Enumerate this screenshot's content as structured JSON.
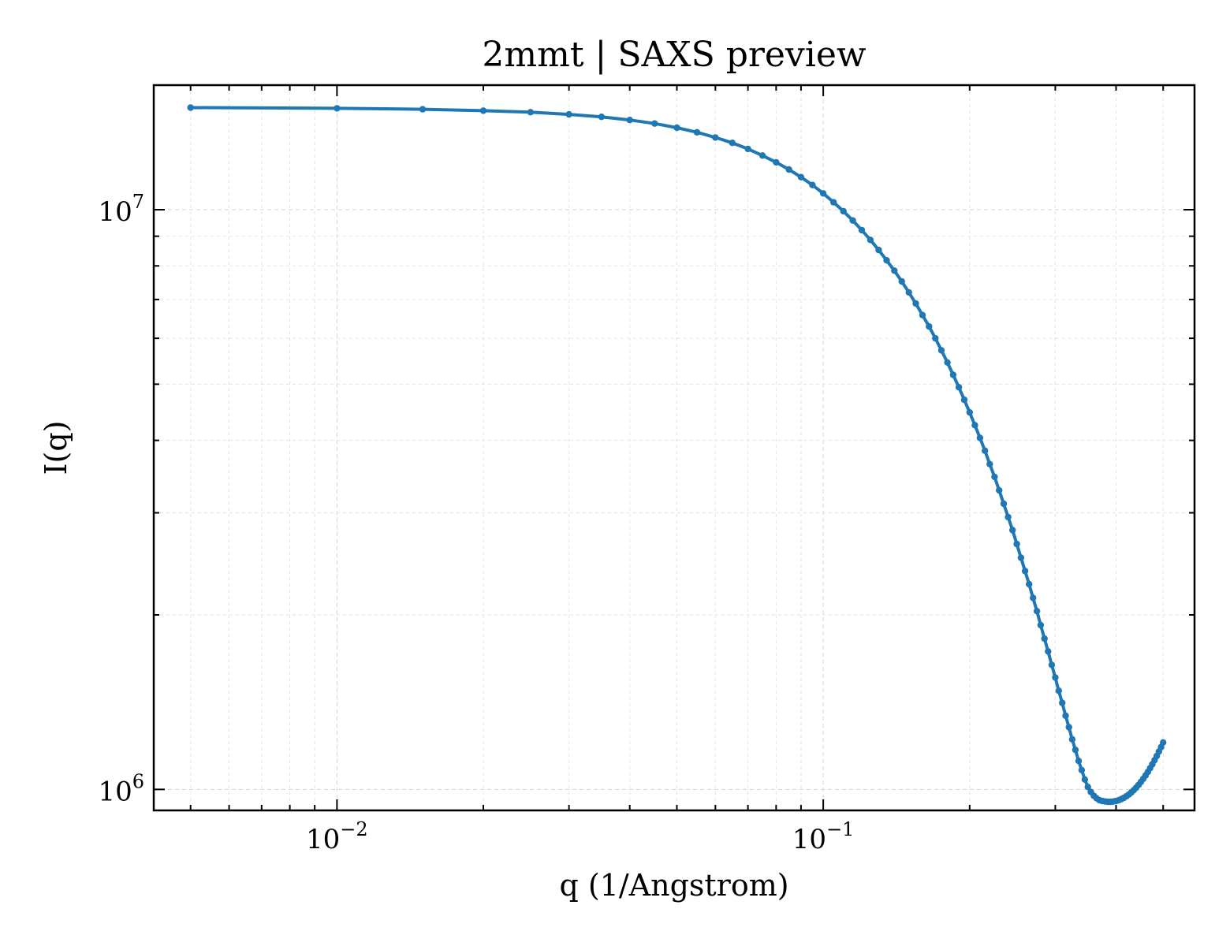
{
  "chart_data": {
    "type": "line",
    "title": "2mmt | SAXS preview",
    "xlabel": "q (1/Angstrom)",
    "ylabel": "I(q)",
    "x_scale": "log",
    "y_scale": "log",
    "xlim": [
      0.0042,
      0.58
    ],
    "ylim": [
      920000,
      16400000
    ],
    "x_ticks": [
      {
        "value": 0.01,
        "base": "10",
        "exp": "−2"
      },
      {
        "value": 0.1,
        "base": "10",
        "exp": "−1"
      }
    ],
    "y_ticks": [
      {
        "value": 1000000,
        "base": "10",
        "exp": "6"
      },
      {
        "value": 10000000,
        "base": "10",
        "exp": "7"
      }
    ],
    "grid": true,
    "line_color": "#1f77b4",
    "series": [
      {
        "x": [
          0.005,
          0.01,
          0.015,
          0.02,
          0.025,
          0.03,
          0.035,
          0.04,
          0.045,
          0.05,
          0.055,
          0.06,
          0.065,
          0.07,
          0.075,
          0.08,
          0.085,
          0.09,
          0.095,
          0.1,
          0.105,
          0.11,
          0.115,
          0.12,
          0.125,
          0.13,
          0.135,
          0.14,
          0.145,
          0.15,
          0.155,
          0.16,
          0.165,
          0.17,
          0.175,
          0.18,
          0.185,
          0.19,
          0.195,
          0.2,
          0.205,
          0.21,
          0.215,
          0.22,
          0.225,
          0.23,
          0.235,
          0.24,
          0.245,
          0.25,
          0.255,
          0.26,
          0.265,
          0.27,
          0.275,
          0.28,
          0.285,
          0.29,
          0.295,
          0.3,
          0.305,
          0.31,
          0.315,
          0.32,
          0.325,
          0.33,
          0.335,
          0.34,
          0.345,
          0.35,
          0.355,
          0.36,
          0.365,
          0.37,
          0.375,
          0.38,
          0.385,
          0.39,
          0.395,
          0.4,
          0.405,
          0.41,
          0.415,
          0.42,
          0.425,
          0.43,
          0.435,
          0.44,
          0.445,
          0.45,
          0.455,
          0.46,
          0.465,
          0.47,
          0.475,
          0.48,
          0.485,
          0.49,
          0.495,
          0.5
        ],
        "y": [
          15000000,
          14960000,
          14900000,
          14820000,
          14730000,
          14600000,
          14460000,
          14280000,
          14080000,
          13850000,
          13600000,
          13320000,
          13040000,
          12730000,
          12400000,
          12070000,
          11730000,
          11380000,
          11030000,
          10670000,
          10300000,
          9940000,
          9580000,
          9220000,
          8870000,
          8520000,
          8180000,
          7850000,
          7520000,
          7200000,
          6890000,
          6580000,
          6290000,
          6000000,
          5720000,
          5450000,
          5190000,
          4940000,
          4700000,
          4470000,
          4250000,
          4040000,
          3840000,
          3640000,
          3460000,
          3280000,
          3110000,
          2950000,
          2800000,
          2650000,
          2510000,
          2380000,
          2260000,
          2140000,
          2030000,
          1920000,
          1820000,
          1730000,
          1640000,
          1560000,
          1480000,
          1410000,
          1340000,
          1280000,
          1220000,
          1170000,
          1120000,
          1080000,
          1040000,
          1010000,
          990000,
          975000,
          965000,
          958000,
          955000,
          953000,
          952000,
          952000,
          953000,
          955000,
          958000,
          962000,
          967000,
          973000,
          980000,
          988000,
          997000,
          1007000,
          1018000,
          1030000,
          1043000,
          1057000,
          1072000,
          1088000,
          1105000,
          1123000,
          1142000,
          1162000,
          1183000,
          1205000
        ]
      }
    ]
  }
}
